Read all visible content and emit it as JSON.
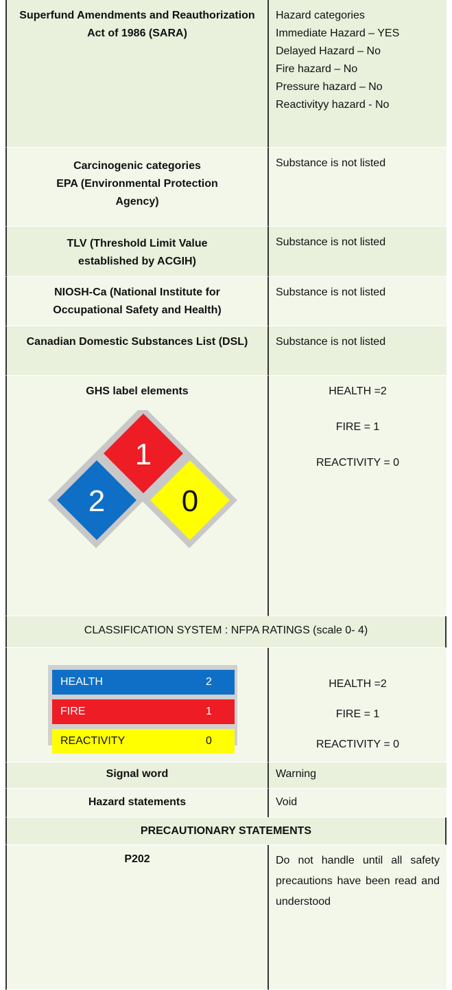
{
  "table": {
    "rows": [
      {
        "label": "Superfund Amendments and Reauthorization Act of 1986 (SARA)",
        "lines": [
          "Hazard categories",
          "Immediate Hazard – YES",
          "Delayed Hazard – No",
          "Fire hazard – No",
          "Pressure hazard – No",
          "Reactivityy hazard - No"
        ]
      },
      {
        "label": [
          "Carcinogenic categories",
          "EPA  (Environmental Protection Agency)"
        ],
        "value": "Substance is not listed"
      },
      {
        "label": "TLV (Threshold Limit Value established by ACGIH)",
        "value": "Substance is not listed"
      },
      {
        "label": "NIOSH-Ca (National Institute for Occupational Safety and Health)",
        "value": "Substance is not listed"
      },
      {
        "label": "Canadian Domestic Substances List (DSL)",
        "value": "Substance is not listed"
      },
      {
        "label": "GHS label elements",
        "diamond": {
          "fire": "1",
          "health": "2",
          "reactivity": "0"
        },
        "lines": [
          "HEALTH =2",
          "FIRE = 1",
          "REACTIVITY = 0"
        ]
      },
      {
        "heading": "CLASSIFICATION SYSTEM : NFPA RATINGS (scale 0- 4)"
      },
      {
        "bars": [
          {
            "name": "HEALTH",
            "value": "2"
          },
          {
            "name": "FIRE",
            "value": "1"
          },
          {
            "name": "REACTIVITY",
            "value": "0"
          }
        ],
        "lines": [
          "HEALTH =2",
          "FIRE = 1",
          "REACTIVITY = 0"
        ]
      },
      {
        "label": "Signal word",
        "value": "Warning"
      },
      {
        "label": "Hazard statements",
        "value": "Void"
      },
      {
        "heading": "PRECAUTIONARY STATEMENTS"
      },
      {
        "label": "P202",
        "value": "Do not handle until all safety precautions have been read and understood"
      }
    ]
  }
}
